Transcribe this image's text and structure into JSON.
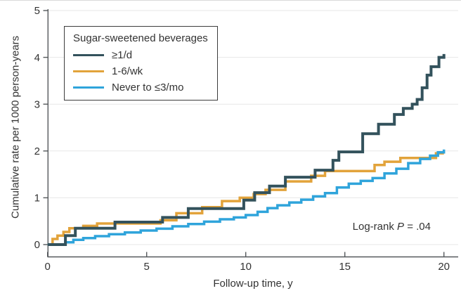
{
  "chart_data": {
    "type": "line",
    "subtype": "step-cumulative-incidence",
    "title": "",
    "xlabel": "Follow-up time, y",
    "ylabel": "Cumulative rate per 1000 person-years",
    "xlim": [
      0,
      20
    ],
    "ylim": [
      0,
      5
    ],
    "xticks": [
      0,
      5,
      10,
      15,
      20
    ],
    "yticks": [
      0,
      1,
      2,
      3,
      4,
      5
    ],
    "grid": "horizontal",
    "legend": {
      "title": "Sugar-sweetened beverages",
      "position": "top-left"
    },
    "annotation": {
      "prefix": "Log-rank ",
      "p": "P",
      "suffix": " = .04"
    },
    "series": [
      {
        "name": "≥1/d",
        "color": "#33525C",
        "width": 4,
        "points": [
          [
            0,
            0
          ],
          [
            0.9,
            0.19
          ],
          [
            1.4,
            0.35
          ],
          [
            3.4,
            0.48
          ],
          [
            5.8,
            0.58
          ],
          [
            7.1,
            0.77
          ],
          [
            9.9,
            0.95
          ],
          [
            10.45,
            1.11
          ],
          [
            11.2,
            1.25
          ],
          [
            12.0,
            1.44
          ],
          [
            13.5,
            1.59
          ],
          [
            14.4,
            1.8
          ],
          [
            14.7,
            1.98
          ],
          [
            15.9,
            2.37
          ],
          [
            16.7,
            2.57
          ],
          [
            17.5,
            2.78
          ],
          [
            17.95,
            2.91
          ],
          [
            18.4,
            3.0
          ],
          [
            18.65,
            3.1
          ],
          [
            18.9,
            3.35
          ],
          [
            19.15,
            3.62
          ],
          [
            19.35,
            3.8
          ],
          [
            19.75,
            4.0
          ],
          [
            20,
            4.07
          ]
        ]
      },
      {
        "name": "1-6/wk",
        "color": "#E2A33B",
        "width": 3.5,
        "points": [
          [
            0,
            0
          ],
          [
            0.25,
            0.12
          ],
          [
            0.5,
            0.19
          ],
          [
            0.8,
            0.27
          ],
          [
            1.1,
            0.35
          ],
          [
            1.8,
            0.4
          ],
          [
            2.5,
            0.45
          ],
          [
            5.7,
            0.52
          ],
          [
            6.5,
            0.67
          ],
          [
            7.8,
            0.8
          ],
          [
            8.8,
            0.93
          ],
          [
            9.7,
            1.0
          ],
          [
            10.4,
            1.08
          ],
          [
            11.0,
            1.17
          ],
          [
            12.0,
            1.35
          ],
          [
            13.3,
            1.47
          ],
          [
            14.0,
            1.57
          ],
          [
            16.5,
            1.7
          ],
          [
            17.0,
            1.77
          ],
          [
            17.8,
            1.85
          ],
          [
            19.6,
            1.95
          ],
          [
            20,
            1.95
          ]
        ]
      },
      {
        "name": "Never to ≤3/mo",
        "color": "#2FA4DB",
        "width": 3.5,
        "points": [
          [
            0,
            0
          ],
          [
            0.9,
            0.05
          ],
          [
            1.3,
            0.1
          ],
          [
            1.8,
            0.14
          ],
          [
            2.4,
            0.18
          ],
          [
            3.1,
            0.22
          ],
          [
            3.9,
            0.26
          ],
          [
            4.7,
            0.3
          ],
          [
            5.5,
            0.34
          ],
          [
            6.3,
            0.39
          ],
          [
            7.1,
            0.44
          ],
          [
            7.9,
            0.49
          ],
          [
            8.7,
            0.54
          ],
          [
            9.4,
            0.58
          ],
          [
            10.0,
            0.63
          ],
          [
            10.6,
            0.7
          ],
          [
            11.1,
            0.78
          ],
          [
            11.6,
            0.84
          ],
          [
            12.2,
            0.9
          ],
          [
            12.8,
            0.96
          ],
          [
            13.4,
            1.03
          ],
          [
            14.0,
            1.1
          ],
          [
            14.6,
            1.22
          ],
          [
            15.2,
            1.3
          ],
          [
            15.8,
            1.36
          ],
          [
            16.4,
            1.42
          ],
          [
            17.0,
            1.52
          ],
          [
            17.6,
            1.62
          ],
          [
            18.2,
            1.74
          ],
          [
            18.8,
            1.83
          ],
          [
            19.3,
            1.9
          ],
          [
            19.7,
            1.97
          ],
          [
            20,
            2.03
          ]
        ]
      }
    ],
    "draw_order": [
      1,
      2,
      0
    ]
  },
  "styles": {
    "background": "#ffffff",
    "grid_color": "#e7e7e7",
    "axis_color": "#55595c",
    "text_color": "#333333",
    "legend_border": "#3c3c3c",
    "top_rule_color": "#d9d9d9"
  }
}
